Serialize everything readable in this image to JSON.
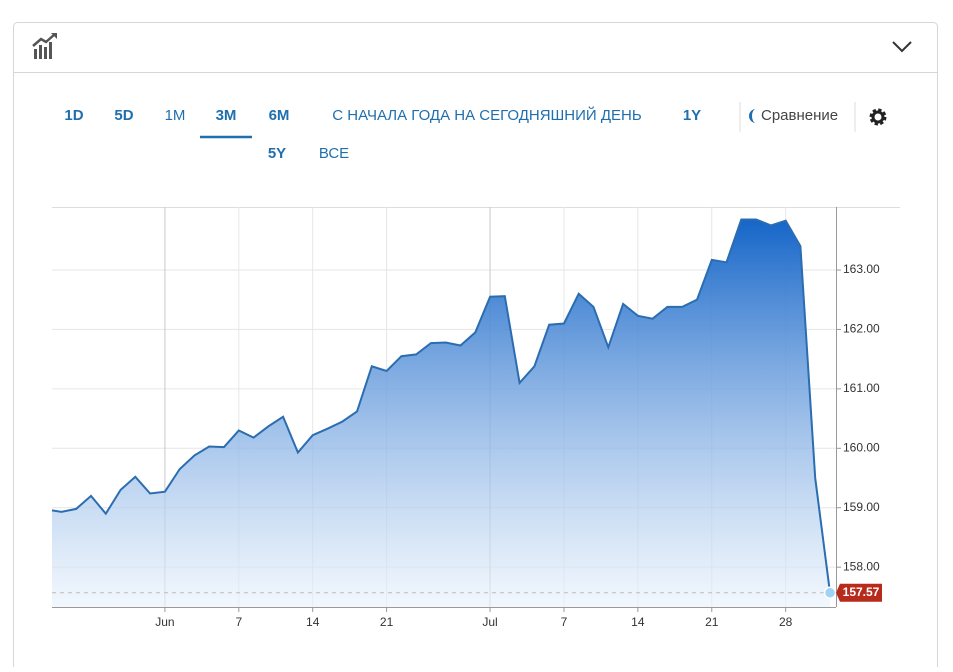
{
  "toolbar": {
    "ranges": [
      "1D",
      "5D",
      "1M",
      "3M",
      "6M",
      "С НАЧАЛА ГОДА НА СЕГОДНЯШНИЙ ДЕНЬ",
      "1Y",
      "5Y",
      "ВСЕ"
    ],
    "active_range": 3,
    "compare": "Сравнение"
  },
  "chart_data": {
    "type": "area",
    "categories": [
      null,
      null,
      null,
      null,
      null,
      null,
      null,
      null,
      "Jun",
      null,
      null,
      null,
      null,
      "7",
      null,
      null,
      null,
      null,
      "14",
      null,
      null,
      null,
      null,
      "21",
      null,
      null,
      null,
      null,
      null,
      null,
      "Jul",
      null,
      null,
      null,
      null,
      "7",
      null,
      null,
      null,
      null,
      "14",
      null,
      null,
      null,
      null,
      "21",
      null,
      null,
      null,
      null,
      "28",
      null,
      null,
      null
    ],
    "values": [
      158.97,
      158.93,
      158.98,
      159.2,
      158.9,
      159.3,
      159.52,
      159.24,
      159.27,
      159.65,
      159.88,
      160.03,
      160.02,
      160.3,
      160.18,
      160.37,
      160.53,
      159.93,
      160.22,
      160.33,
      160.45,
      160.62,
      161.38,
      161.3,
      161.55,
      161.58,
      161.77,
      161.78,
      161.73,
      161.95,
      162.55,
      162.56,
      161.1,
      161.38,
      162.08,
      162.1,
      162.6,
      162.38,
      161.7,
      162.43,
      162.23,
      162.18,
      162.38,
      162.38,
      162.5,
      163.17,
      163.13,
      163.85,
      163.85,
      163.75,
      163.83,
      163.4,
      159.5,
      157.57
    ],
    "color": "#2a6db0",
    "ylim": [
      157.33,
      164.06
    ],
    "yticks": [
      {
        "value": 158,
        "label": "158.00"
      },
      {
        "value": 159,
        "label": "159.00"
      },
      {
        "value": 160,
        "label": "160.00"
      },
      {
        "value": 161,
        "label": "161.00"
      },
      {
        "value": 162,
        "label": "162.00"
      },
      {
        "value": 163,
        "label": "163.00"
      }
    ],
    "grid": true
  }
}
